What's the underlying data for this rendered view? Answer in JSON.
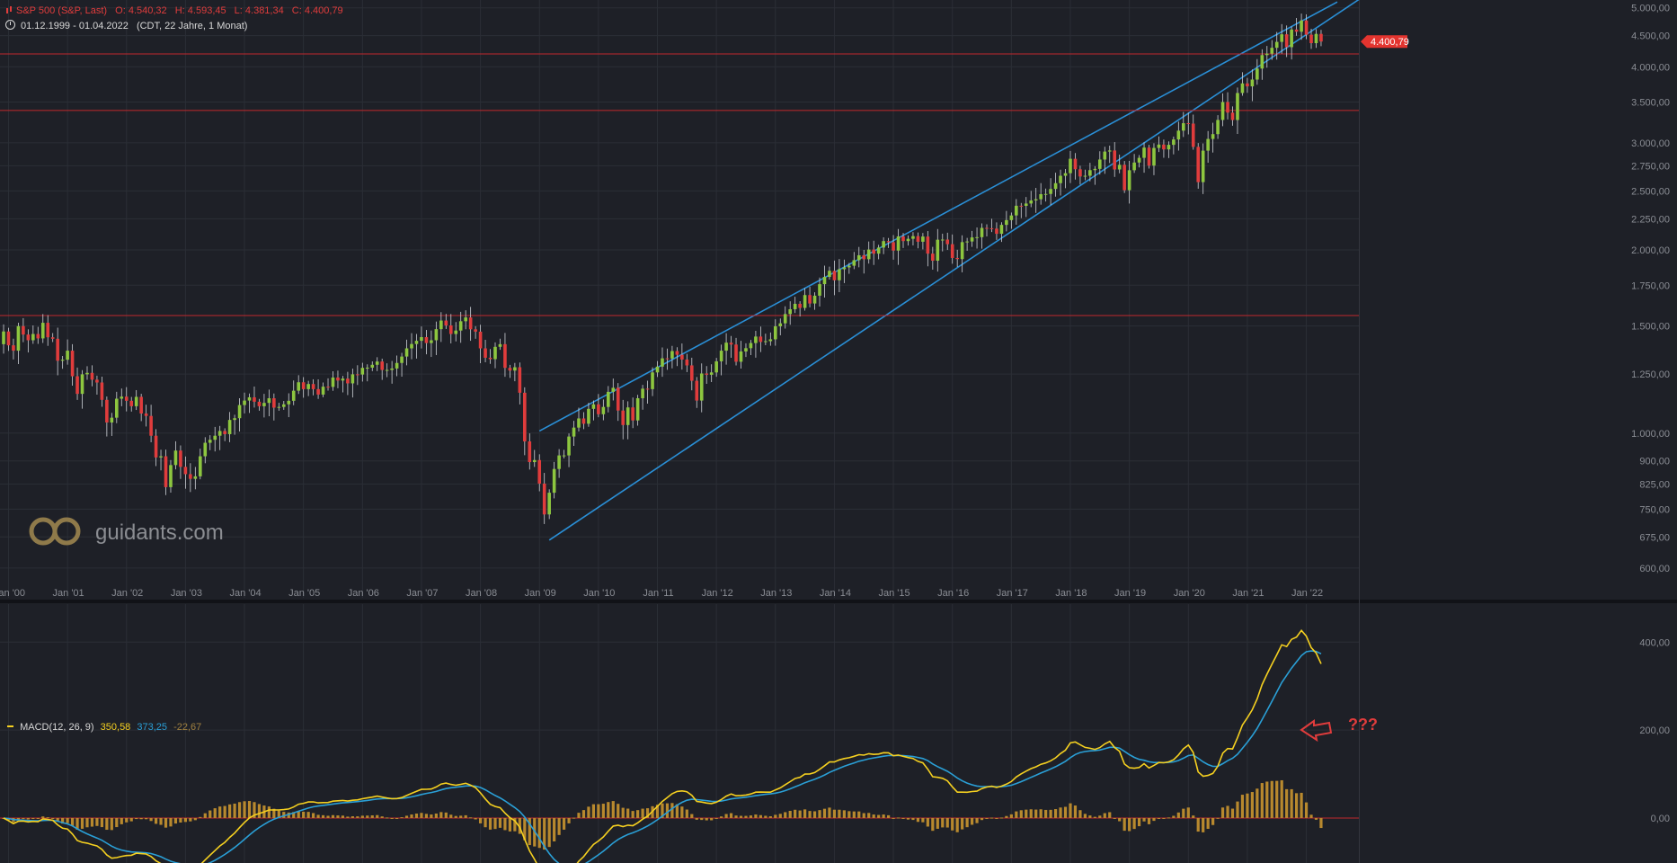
{
  "header": {
    "instrument": "S&P 500 (S&P, Last)",
    "open": "O: 4.540,32",
    "high": "H: 4.593,45",
    "low": "L: 4.381,34",
    "close": "C: 4.400,79",
    "range": "01.12.1999 - 01.04.2022",
    "meta": "(CDT, 22 Jahre, 1 Monat)"
  },
  "last_price_label": "4.400,79",
  "watermark": "guidants.com",
  "annotation": "???",
  "macd_header": {
    "name": "MACD(12, 26, 9)",
    "macd": "350,58",
    "signal": "373,25",
    "hist": "-22,67"
  },
  "colors": {
    "background": "#1e2027",
    "up": "#8dc63f",
    "down": "#e03c3c",
    "channel": "#2a8fd6",
    "resistance": "#c0282d",
    "macd_line": "#f5d020",
    "signal_line": "#2a9fd6",
    "histogram": "#b8892e"
  },
  "chart_data": {
    "type": "candlestick",
    "title": "S&P 500 (S&P, Last)",
    "interval": "1 Monat",
    "scale": "log",
    "ylim": [
      570,
      5150
    ],
    "y_ticks": [
      600,
      675,
      750,
      825,
      900,
      1000,
      1250,
      1500,
      1750,
      2000,
      2250,
      2500,
      2750,
      3000,
      3500,
      4000,
      4500,
      5000
    ],
    "y_tick_labels": [
      "600,00",
      "675,00",
      "750,00",
      "825,00",
      "900,00",
      "1.000,00",
      "1.250,00",
      "1.500,00",
      "1.750,00",
      "2.000,00",
      "2.250,00",
      "2.500,00",
      "2.750,00",
      "3.000,00",
      "3.500,00",
      "4.000,00",
      "4.500,00",
      "5.000,00"
    ],
    "x_ticks": [
      "Jan '00",
      "Jan '01",
      "Jan '02",
      "Jan '03",
      "Jan '04",
      "Jan '05",
      "Jan '06",
      "Jan '07",
      "Jan '08",
      "Jan '09",
      "Jan '10",
      "Jan '11",
      "Jan '12",
      "Jan '13",
      "Jan '14",
      "Jan '15",
      "Jan '16",
      "Jan '17",
      "Jan '18",
      "Jan '19",
      "Jan '20",
      "Jan '21",
      "Jan '22"
    ],
    "x_range": [
      "1999-12",
      "2022-04"
    ],
    "monthly_closes": [
      1469,
      1394,
      1366,
      1499,
      1452,
      1421,
      1455,
      1431,
      1518,
      1437,
      1429,
      1315,
      1320,
      1366,
      1240,
      1160,
      1249,
      1256,
      1224,
      1211,
      1134,
      1041,
      1060,
      1139,
      1148,
      1130,
      1107,
      1147,
      1077,
      1067,
      990,
      912,
      916,
      815,
      886,
      936,
      880,
      856,
      841,
      849,
      916,
      964,
      975,
      990,
      1008,
      996,
      1051,
      1058,
      1112,
      1131,
      1145,
      1126,
      1107,
      1121,
      1141,
      1101,
      1104,
      1115,
      1130,
      1174,
      1212,
      1181,
      1204,
      1181,
      1157,
      1192,
      1191,
      1234,
      1220,
      1229,
      1207,
      1249,
      1248,
      1280,
      1281,
      1295,
      1311,
      1270,
      1270,
      1277,
      1304,
      1336,
      1378,
      1401,
      1418,
      1438,
      1406,
      1421,
      1482,
      1531,
      1503,
      1455,
      1474,
      1527,
      1549,
      1481,
      1468,
      1378,
      1330,
      1323,
      1386,
      1400,
      1280,
      1267,
      1283,
      1165,
      969,
      896,
      903,
      826,
      735,
      798,
      873,
      919,
      919,
      987,
      1021,
      1057,
      1036,
      1096,
      1115,
      1074,
      1104,
      1169,
      1187,
      1089,
      1031,
      1102,
      1049,
      1141,
      1183,
      1181,
      1258,
      1286,
      1327,
      1326,
      1364,
      1345,
      1321,
      1292,
      1219,
      1131,
      1253,
      1247,
      1258,
      1312,
      1366,
      1408,
      1398,
      1310,
      1362,
      1379,
      1406,
      1441,
      1412,
      1416,
      1426,
      1498,
      1515,
      1569,
      1598,
      1631,
      1606,
      1686,
      1633,
      1682,
      1757,
      1806,
      1848,
      1783,
      1859,
      1872,
      1884,
      1924,
      1960,
      1931,
      2003,
      1972,
      2018,
      2068,
      2059,
      1995,
      2105,
      2068,
      2086,
      2107,
      2063,
      2104,
      1972,
      1920,
      2079,
      2080,
      2044,
      1940,
      1932,
      2060,
      2065,
      2097,
      2099,
      2174,
      2171,
      2168,
      2126,
      2199,
      2239,
      2279,
      2364,
      2363,
      2384,
      2412,
      2423,
      2470,
      2472,
      2519,
      2575,
      2648,
      2674,
      2824,
      2714,
      2641,
      2648,
      2705,
      2718,
      2816,
      2902,
      2914,
      2712,
      2760,
      2507,
      2704,
      2784,
      2834,
      2946,
      2752,
      2942,
      2980,
      2926,
      2977,
      3038,
      3141,
      3231,
      3226,
      2954,
      2585,
      2912,
      3044,
      3100,
      3271,
      3500,
      3363,
      3270,
      3622,
      3756,
      3714,
      3811,
      3973,
      4181,
      4204,
      4298,
      4395,
      4523,
      4308,
      4605,
      4567,
      4766,
      4516,
      4374,
      4530,
      4401
    ],
    "macd_ylim": [
      -90,
      470
    ],
    "macd_ticks": [
      0,
      200,
      400
    ],
    "macd_tick_labels": [
      "0,00",
      "200,00",
      "400,00"
    ],
    "macd_last": {
      "macd": 350.58,
      "signal": 373.25,
      "histogram": -22.67
    },
    "horizontal_lines": [
      1560,
      3390,
      4200
    ],
    "trend_channel": {
      "upper": [
        [
          "2009-01",
          1008
        ],
        [
          "2022-01",
          4800
        ]
      ],
      "lower": [
        [
          "2009-03",
          667
        ],
        [
          "2022-12",
          5180
        ]
      ]
    }
  }
}
